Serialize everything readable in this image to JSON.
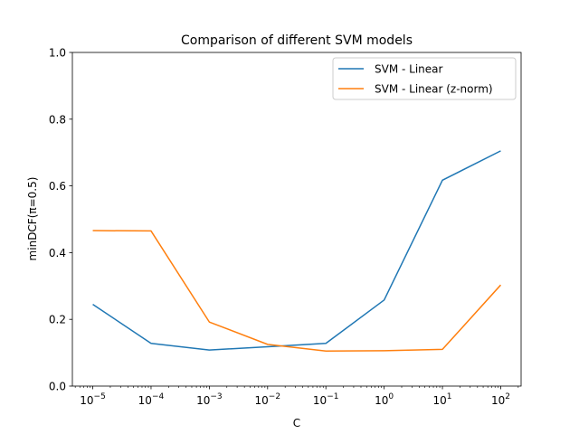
{
  "chart_data": {
    "type": "line",
    "title": "Comparison of different SVM models",
    "xlabel": "C",
    "ylabel": "minDCF(π=0.5)",
    "x_scale": "log",
    "x": [
      1e-05,
      0.0001,
      0.001,
      0.01,
      0.1,
      1,
      10,
      100
    ],
    "x_tick_exponents": [
      "−5",
      "−4",
      "−3",
      "−2",
      "−1",
      "0",
      "1",
      "2"
    ],
    "x_tick_base": "10",
    "ylim": [
      0.0,
      1.0
    ],
    "y_ticks": [
      "0.0",
      "0.2",
      "0.4",
      "0.6",
      "0.8",
      "1.0"
    ],
    "grid": false,
    "legend_position": "top-right",
    "series": [
      {
        "name": "SVM - Linear",
        "color": "#1f77b4",
        "values": [
          0.245,
          0.128,
          0.108,
          0.118,
          0.128,
          0.258,
          0.617,
          0.705
        ]
      },
      {
        "name": "SVM - Linear (z-norm)",
        "color": "#ff7f0e",
        "values": [
          0.466,
          0.465,
          0.192,
          0.125,
          0.105,
          0.106,
          0.11,
          0.303
        ]
      }
    ]
  }
}
